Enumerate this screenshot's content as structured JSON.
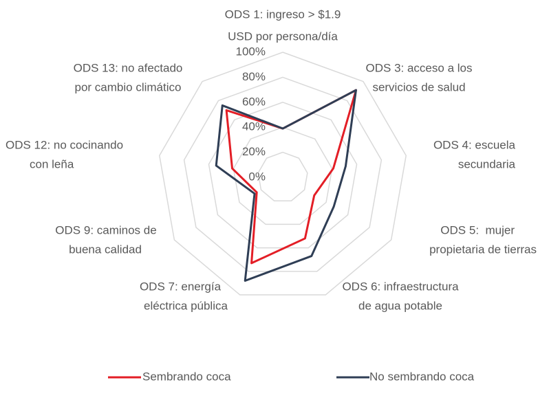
{
  "chart_data": {
    "type": "radar",
    "categories": [
      [
        "ODS 1: ingreso > $1.9",
        "USD por persona/día"
      ],
      [
        "ODS 3: acceso a los",
        "servicios de salud"
      ],
      [
        "ODS 4: escuela",
        "secundaria"
      ],
      [
        "ODS 5:  mujer",
        "propietaria de tierras"
      ],
      [
        "ODS 6: infraestructura",
        "de agua potable"
      ],
      [
        "ODS 7: energía",
        "eléctrica pública"
      ],
      [
        "ODS 9: caminos de",
        "buena calidad"
      ],
      [
        "ODS 12: no cocinando",
        "con leña"
      ],
      [
        "ODS 13: no afectado",
        "por cambio climático"
      ]
    ],
    "series": [
      {
        "name": "Sembrando coca",
        "color": "#e31e26",
        "values": [
          39,
          91,
          41,
          29,
          52,
          73,
          24,
          41,
          70
        ]
      },
      {
        "name": "No sembrando coca",
        "color": "#2f3e55",
        "values": [
          39,
          91,
          51,
          47,
          67,
          88,
          26,
          54,
          75
        ]
      }
    ],
    "ylim": [
      0,
      100
    ],
    "yticks": [
      {
        "value": 0,
        "label": "0%"
      },
      {
        "value": 20,
        "label": "20%"
      },
      {
        "value": 40,
        "label": "40%"
      },
      {
        "value": 60,
        "label": "60%"
      },
      {
        "value": 80,
        "label": "80%"
      },
      {
        "value": 100,
        "label": "100%"
      }
    ],
    "grid": true,
    "legend": "bottom"
  }
}
